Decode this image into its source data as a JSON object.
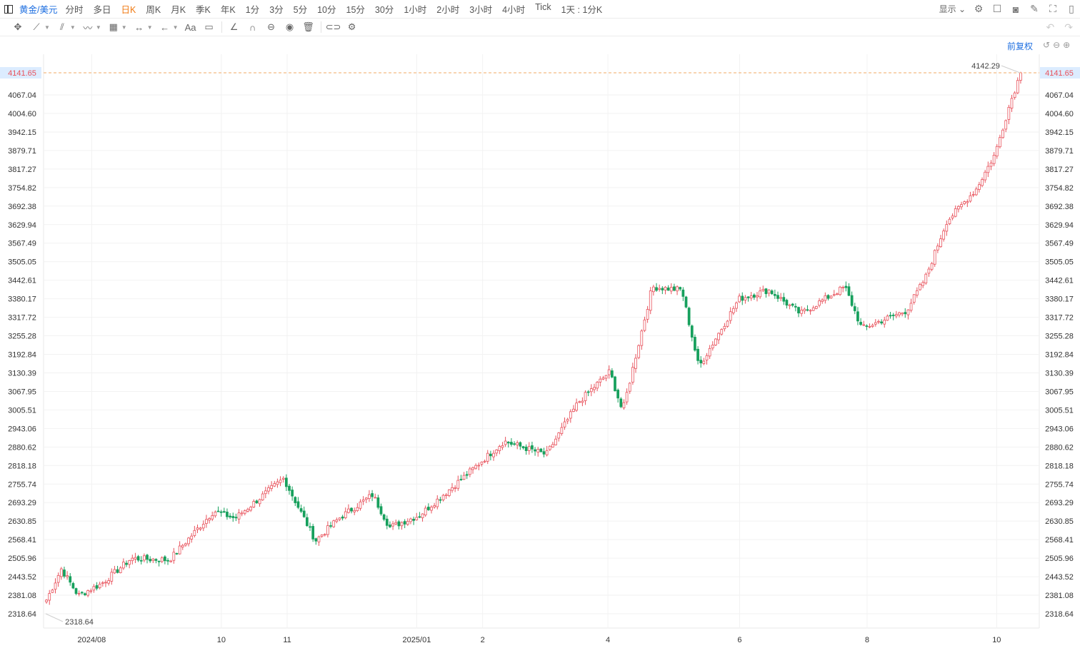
{
  "header": {
    "symbol": "黄金/美元",
    "periods": [
      "分时",
      "多日",
      "日K",
      "周K",
      "月K",
      "季K",
      "年K",
      "1分",
      "3分",
      "5分",
      "10分",
      "15分",
      "30分",
      "1小时",
      "2小时",
      "3小时",
      "4小时",
      "Tick",
      "1天 : 1分K"
    ],
    "active_period": "日K",
    "display_label": "显示"
  },
  "toolbar": {
    "text_tool_label": "Aa"
  },
  "adjust_label": "前复权",
  "colors": {
    "up": "#e8525c",
    "down": "#17a05d",
    "last_price_line": "#f0a866",
    "last_price_bg": "#dcecff",
    "grid": "#f2f2f2"
  },
  "chart_data": {
    "type": "candlestick",
    "y_ticks": [
      "4067.04",
      "4004.60",
      "3942.15",
      "3879.71",
      "3817.27",
      "3754.82",
      "3692.38",
      "3629.94",
      "3567.49",
      "3505.05",
      "3442.61",
      "3380.17",
      "3317.72",
      "3255.28",
      "3192.84",
      "3130.39",
      "3067.95",
      "3005.51",
      "2943.06",
      "2880.62",
      "2818.18",
      "2755.74",
      "2693.29",
      "2630.85",
      "2568.41",
      "2505.96",
      "2443.52",
      "2381.08",
      "2318.64"
    ],
    "x_ticks": [
      "2024/08",
      "10",
      "11",
      "2025/01",
      "2",
      "4",
      "6",
      "8",
      "10"
    ],
    "last_price": "4141.65",
    "high_label": "4142.29",
    "low_label": "2318.64",
    "ylim": [
      2318.64,
      4141.65
    ],
    "trend_series": {
      "name": "",
      "points": [
        [
          "2024-07-10",
          2365
        ],
        [
          "2024-07-17",
          2470
        ],
        [
          "2024-07-25",
          2380
        ],
        [
          "2024-08-05",
          2420
        ],
        [
          "2024-08-19",
          2505
        ],
        [
          "2024-09-06",
          2500
        ],
        [
          "2024-09-27",
          2665
        ],
        [
          "2024-10-07",
          2640
        ],
        [
          "2024-10-30",
          2775
        ],
        [
          "2024-11-14",
          2565
        ],
        [
          "2024-11-25",
          2640
        ],
        [
          "2024-12-11",
          2720
        ],
        [
          "2024-12-19",
          2610
        ],
        [
          "2025-01-02",
          2650
        ],
        [
          "2025-01-24",
          2785
        ],
        [
          "2025-02-11",
          2900
        ],
        [
          "2025-03-03",
          2855
        ],
        [
          "2025-03-18",
          3030
        ],
        [
          "2025-04-02",
          3135
        ],
        [
          "2025-04-08",
          3000
        ],
        [
          "2025-04-22",
          3420
        ],
        [
          "2025-05-06",
          3410
        ],
        [
          "2025-05-14",
          3150
        ],
        [
          "2025-06-02",
          3380
        ],
        [
          "2025-06-16",
          3410
        ],
        [
          "2025-07-01",
          3330
        ],
        [
          "2025-07-22",
          3420
        ],
        [
          "2025-07-30",
          3280
        ],
        [
          "2025-08-20",
          3340
        ],
        [
          "2025-08-29",
          3450
        ],
        [
          "2025-09-08",
          3640
        ],
        [
          "2025-09-22",
          3750
        ],
        [
          "2025-10-01",
          3870
        ],
        [
          "2025-10-08",
          4040
        ],
        [
          "2025-10-13",
          4141.65
        ]
      ]
    }
  }
}
